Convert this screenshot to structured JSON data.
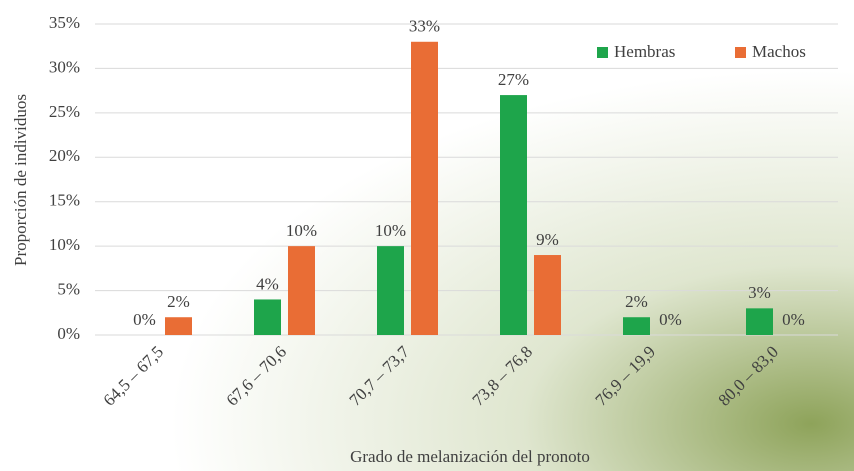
{
  "chart_data": {
    "type": "bar",
    "x_label": "Grado de melanización del pronoto",
    "y_label": "Proporción de individuos",
    "categories": [
      "64,5 – 67,5",
      "67,6 – 70,6",
      "70,7 – 73,7",
      "73,8 – 76,8",
      "76,9 – 19,9",
      "80,0 – 83,0"
    ],
    "series": [
      {
        "name": "Hembras",
        "color": "#1ea54b",
        "values": [
          0,
          4,
          10,
          27,
          2,
          3
        ],
        "value_labels": [
          "0%",
          "4%",
          "10%",
          "27%",
          "2%",
          "3%"
        ]
      },
      {
        "name": "Machos",
        "color": "#e96d35",
        "values": [
          2,
          10,
          33,
          9,
          0,
          0
        ],
        "value_labels": [
          "2%",
          "10%",
          "33%",
          "9%",
          "0%",
          "0%"
        ]
      }
    ],
    "ylim": [
      0,
      35
    ],
    "yticks": [
      {
        "value": 0,
        "label": "0%"
      },
      {
        "value": 5,
        "label": "5%"
      },
      {
        "value": 10,
        "label": "10%"
      },
      {
        "value": 15,
        "label": "15%"
      },
      {
        "value": 20,
        "label": "20%"
      },
      {
        "value": 25,
        "label": "25%"
      },
      {
        "value": 30,
        "label": "30%"
      },
      {
        "value": 35,
        "label": "35%"
      }
    ],
    "grid": true,
    "legend": "top-right"
  }
}
